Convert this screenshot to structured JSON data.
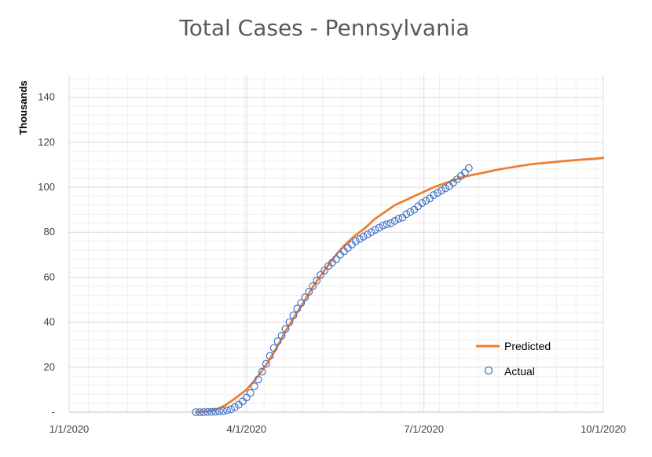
{
  "chart_data": {
    "type": "line",
    "title": "Total Cases - Pennsylvania",
    "ylabel": "Thousands",
    "xlabel": "",
    "x_ticks": [
      "1/1/2020",
      "4/1/2020",
      "7/1/2020",
      "10/1/2020"
    ],
    "y_ticks": [
      "-",
      "20",
      "40",
      "60",
      "80",
      "100",
      "120",
      "140"
    ],
    "xlim": [
      "2020-01-01",
      "2020-10-01"
    ],
    "ylim": [
      0,
      150
    ],
    "grid": "major and minor",
    "legend": "bottom-right",
    "series": [
      {
        "name": "Predicted",
        "style": "line",
        "color": "#ED7D31",
        "x": [
          "2020-03-06",
          "2020-03-11",
          "2020-03-16",
          "2020-03-21",
          "2020-03-26",
          "2020-04-01",
          "2020-04-06",
          "2020-04-11",
          "2020-04-16",
          "2020-04-21",
          "2020-04-26",
          "2020-05-01",
          "2020-05-06",
          "2020-05-11",
          "2020-05-16",
          "2020-05-21",
          "2020-05-26",
          "2020-06-01",
          "2020-06-06",
          "2020-06-11",
          "2020-06-16",
          "2020-06-21",
          "2020-06-26",
          "2020-07-01",
          "2020-07-06",
          "2020-07-11",
          "2020-07-16",
          "2020-07-21",
          "2020-07-26",
          "2020-08-01",
          "2020-08-06",
          "2020-08-11",
          "2020-08-16",
          "2020-08-21",
          "2020-08-26",
          "2020-09-01",
          "2020-09-06",
          "2020-09-11",
          "2020-09-16",
          "2020-09-21",
          "2020-09-26",
          "2020-10-01"
        ],
        "y": [
          0,
          0.3,
          1,
          3,
          6,
          10,
          15,
          21,
          28,
          36,
          43,
          50,
          57,
          63,
          69,
          74,
          78,
          82,
          86,
          89,
          92,
          94,
          96,
          98,
          100,
          101.5,
          103,
          104.5,
          105.5,
          106.5,
          107.5,
          108.3,
          109,
          109.7,
          110.3,
          110.8,
          111.2,
          111.6,
          112,
          112.3,
          112.6,
          113
        ]
      },
      {
        "name": "Actual",
        "style": "markers",
        "color": "#4472C4",
        "x": [
          "2020-03-06",
          "2020-03-08",
          "2020-03-10",
          "2020-03-12",
          "2020-03-14",
          "2020-03-16",
          "2020-03-18",
          "2020-03-20",
          "2020-03-22",
          "2020-03-24",
          "2020-03-26",
          "2020-03-28",
          "2020-03-30",
          "2020-04-01",
          "2020-04-03",
          "2020-04-05",
          "2020-04-07",
          "2020-04-09",
          "2020-04-11",
          "2020-04-13",
          "2020-04-15",
          "2020-04-17",
          "2020-04-19",
          "2020-04-21",
          "2020-04-23",
          "2020-04-25",
          "2020-04-27",
          "2020-04-29",
          "2020-05-01",
          "2020-05-03",
          "2020-05-05",
          "2020-05-07",
          "2020-05-09",
          "2020-05-11",
          "2020-05-13",
          "2020-05-15",
          "2020-05-17",
          "2020-05-19",
          "2020-05-21",
          "2020-05-23",
          "2020-05-25",
          "2020-05-27",
          "2020-05-29",
          "2020-05-31",
          "2020-06-02",
          "2020-06-04",
          "2020-06-06",
          "2020-06-08",
          "2020-06-10",
          "2020-06-12",
          "2020-06-14",
          "2020-06-16",
          "2020-06-18",
          "2020-06-20",
          "2020-06-22",
          "2020-06-24",
          "2020-06-26",
          "2020-06-28",
          "2020-06-30",
          "2020-07-02",
          "2020-07-04",
          "2020-07-06",
          "2020-07-08",
          "2020-07-10",
          "2020-07-12",
          "2020-07-14",
          "2020-07-16",
          "2020-07-18",
          "2020-07-20",
          "2020-07-22",
          "2020-07-24"
        ],
        "y": [
          0,
          0,
          0,
          0.1,
          0.1,
          0.2,
          0.3,
          0.5,
          0.8,
          1.3,
          2.2,
          3.3,
          4.8,
          6.5,
          8.5,
          11.5,
          14.5,
          18,
          21.5,
          25,
          28.5,
          31.5,
          34,
          37,
          40,
          43,
          46,
          48.5,
          51,
          53.5,
          56,
          58.5,
          61,
          63,
          65,
          66.5,
          68,
          70,
          71.5,
          73,
          74.5,
          76,
          77,
          78,
          79,
          80,
          81,
          82,
          83,
          83.5,
          84,
          85,
          86,
          86.5,
          88,
          89,
          90,
          91.5,
          93,
          94,
          95,
          96.5,
          97.5,
          98.5,
          99.5,
          100.5,
          102,
          103.5,
          105,
          106.5,
          108.5
        ]
      }
    ]
  }
}
